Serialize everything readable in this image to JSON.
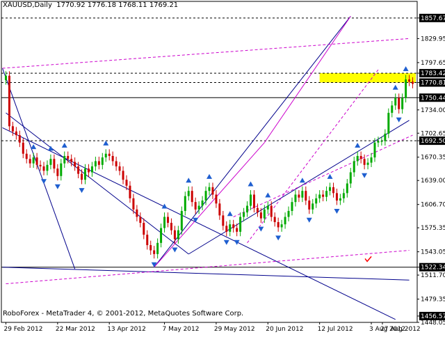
{
  "header": {
    "symbol_period": "XAUUSD,Daily",
    "ohlc": "1770.92 1776.18 1768.11 1769.21"
  },
  "footer": {
    "copyright": "RoboForex - MetaTrader 4, © 2001-2012, MetaQuotes Software Corp."
  },
  "colors": {
    "bull_candle": "#00aa00",
    "bear_candle": "#cc0000",
    "trendline": "#00008b",
    "magenta_line": "#cc00cc",
    "highlight_zone": "#ffff00",
    "fractal_arrow": "#1f5fd0",
    "check_mark": "#ff0000"
  },
  "chart_data": {
    "type": "candlestick",
    "symbol": "XAUUSD",
    "timeframe": "Daily",
    "ylim": [
      1448.05,
      1880
    ],
    "y_ticks": [
      "1857.67",
      "1829.95",
      "1797.65",
      "1783.42",
      "1770.81",
      "1750.44",
      "1734.00",
      "1702.65",
      "1692.50",
      "1670.35",
      "1639.00",
      "1606.70",
      "1575.35",
      "1543.05",
      "1522.34",
      "1511.70",
      "1479.35",
      "1456.57",
      "1448.05"
    ],
    "y_tick_values": [
      1857.67,
      1829.95,
      1797.65,
      1783.42,
      1770.81,
      1750.44,
      1734.0,
      1702.65,
      1692.5,
      1670.35,
      1639.0,
      1606.7,
      1575.35,
      1543.05,
      1522.34,
      1511.7,
      1479.35,
      1456.57,
      1448.05
    ],
    "highlighted_levels": [
      1857.67,
      1783.42,
      1770.81,
      1750.44,
      1692.5,
      1522.34,
      1456.57
    ],
    "x_labels": [
      "29 Feb 2012",
      "22 Mar 2012",
      "13 Apr 2012",
      "7 May 2012",
      "29 May 2012",
      "20 Jun 2012",
      "12 Jul 2012",
      "3 Aug 2012",
      "27 Aug 2012"
    ],
    "resistance_zone": [
      1770.81,
      1783.42
    ],
    "closes": [
      1780,
      1712,
      1705,
      1700,
      1690,
      1675,
      1668,
      1662,
      1670,
      1660,
      1658,
      1652,
      1660,
      1668,
      1655,
      1645,
      1662,
      1672,
      1668,
      1664,
      1658,
      1648,
      1640,
      1655,
      1650,
      1658,
      1665,
      1660,
      1670,
      1675,
      1672,
      1665,
      1658,
      1652,
      1640,
      1632,
      1615,
      1600,
      1590,
      1582,
      1566,
      1552,
      1545,
      1540,
      1555,
      1575,
      1590,
      1582,
      1572,
      1560,
      1572,
      1598,
      1618,
      1625,
      1610,
      1600,
      1605,
      1612,
      1625,
      1630,
      1620,
      1608,
      1592,
      1578,
      1570,
      1580,
      1575,
      1570,
      1590,
      1596,
      1605,
      1620,
      1602,
      1596,
      1588,
      1600,
      1605,
      1590,
      1583,
      1576,
      1580,
      1590,
      1598,
      1610,
      1620,
      1616,
      1625,
      1612,
      1600,
      1608,
      1615,
      1620,
      1617,
      1625,
      1630,
      1622,
      1612,
      1615,
      1622,
      1635,
      1650,
      1665,
      1672,
      1668,
      1660,
      1663,
      1670,
      1690,
      1692,
      1692,
      1702,
      1730,
      1740,
      1750,
      1735,
      1750,
      1775,
      1772,
      1769
    ]
  }
}
